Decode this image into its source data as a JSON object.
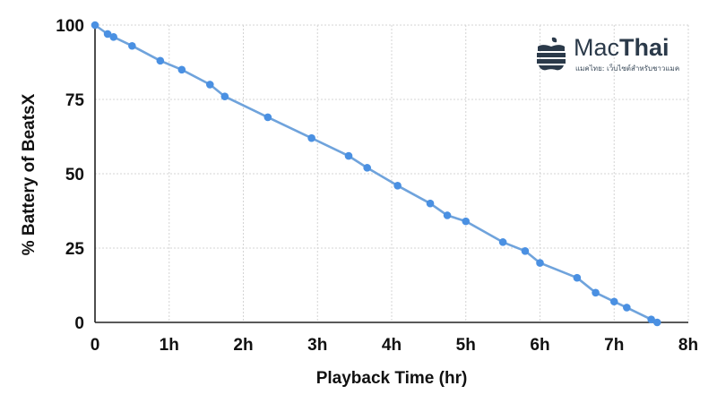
{
  "chart_data": {
    "type": "line",
    "title": "",
    "xlabel": "Playback Time (hr)",
    "ylabel": "% Battery of BeatsX",
    "xlim": [
      0,
      8
    ],
    "ylim": [
      0,
      100
    ],
    "xticks": [
      0,
      1,
      2,
      3,
      4,
      5,
      6,
      7,
      8
    ],
    "xtick_labels": [
      "0",
      "1h",
      "2h",
      "3h",
      "4h",
      "5h",
      "6h",
      "7h",
      "8h"
    ],
    "yticks": [
      0,
      25,
      50,
      75,
      100
    ],
    "ytick_labels": [
      "0",
      "25",
      "50",
      "75",
      "100"
    ],
    "grid": true,
    "series": [
      {
        "color": "#4a90e2",
        "line_color": "#6fa3dc",
        "points": [
          [
            0.0,
            100
          ],
          [
            0.17,
            97
          ],
          [
            0.25,
            96
          ],
          [
            0.5,
            93
          ],
          [
            0.88,
            88
          ],
          [
            1.17,
            85
          ],
          [
            1.55,
            80
          ],
          [
            1.75,
            76
          ],
          [
            2.33,
            69
          ],
          [
            2.92,
            62
          ],
          [
            3.42,
            56
          ],
          [
            3.67,
            52
          ],
          [
            4.08,
            46
          ],
          [
            4.52,
            40
          ],
          [
            4.75,
            36
          ],
          [
            5.0,
            34
          ],
          [
            5.5,
            27
          ],
          [
            5.8,
            24
          ],
          [
            6.0,
            20
          ],
          [
            6.5,
            15
          ],
          [
            6.75,
            10
          ],
          [
            7.0,
            7
          ],
          [
            7.17,
            5
          ],
          [
            7.5,
            1
          ],
          [
            7.58,
            0
          ]
        ]
      }
    ]
  },
  "logo": {
    "name_light": "Mac",
    "name_bold": "Thai",
    "tagline": "แมคไทย: เว็บไซต์สำหรับชาวแมค",
    "color": "#2b3a4a"
  }
}
